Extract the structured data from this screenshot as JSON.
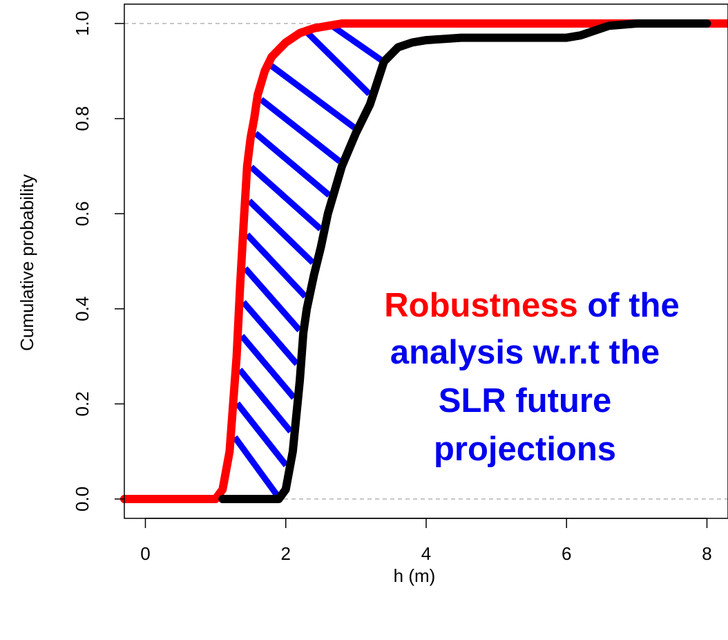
{
  "chart_data": {
    "type": "line",
    "title": "",
    "xlabel": "h (m)",
    "ylabel": "Cumulative probability",
    "xlim": [
      -0.3,
      8.3
    ],
    "ylim": [
      0,
      1
    ],
    "x_ticks": [
      "0",
      "2",
      "4",
      "6",
      "8"
    ],
    "y_ticks": [
      "0.0",
      "0.2",
      "0.4",
      "0.6",
      "0.8",
      "1.0"
    ],
    "reference_lines_y": [
      0,
      1
    ],
    "grid": false,
    "legend": "none",
    "series": [
      {
        "color": "#ff0000",
        "x": [
          -0.3,
          1.0,
          1.1,
          1.2,
          1.3,
          1.35,
          1.4,
          1.45,
          1.5,
          1.55,
          1.6,
          1.7,
          1.8,
          2.0,
          2.2,
          2.4,
          2.6,
          2.8,
          3.2,
          8.3
        ],
        "y": [
          0,
          0,
          0.02,
          0.1,
          0.3,
          0.45,
          0.58,
          0.7,
          0.76,
          0.8,
          0.85,
          0.9,
          0.93,
          0.96,
          0.98,
          0.99,
          0.995,
          1.0,
          1.0,
          1.0
        ]
      },
      {
        "color": "#000000",
        "x": [
          1.1,
          1.9,
          2.0,
          2.1,
          2.2,
          2.25,
          2.3,
          2.4,
          2.5,
          2.6,
          2.8,
          3.0,
          3.2,
          3.4,
          3.6,
          3.8,
          4.0,
          4.5,
          5.0,
          6.0,
          6.2,
          6.4,
          6.6,
          7.0,
          8.0
        ],
        "y": [
          0,
          0,
          0.02,
          0.1,
          0.25,
          0.35,
          0.4,
          0.47,
          0.53,
          0.6,
          0.7,
          0.77,
          0.83,
          0.92,
          0.95,
          0.96,
          0.965,
          0.97,
          0.97,
          0.97,
          0.975,
          0.985,
          0.995,
          1.0,
          1.0
        ]
      }
    ],
    "annotation": {
      "part1": "Robustness",
      "part2": " of the",
      "line2": "analysis w.r.t the",
      "line3": "SLR future",
      "line4": "projections",
      "colors": {
        "highlight": "#ff0000",
        "text": "#0000ee"
      }
    },
    "hatch_color": "#0000ff"
  }
}
